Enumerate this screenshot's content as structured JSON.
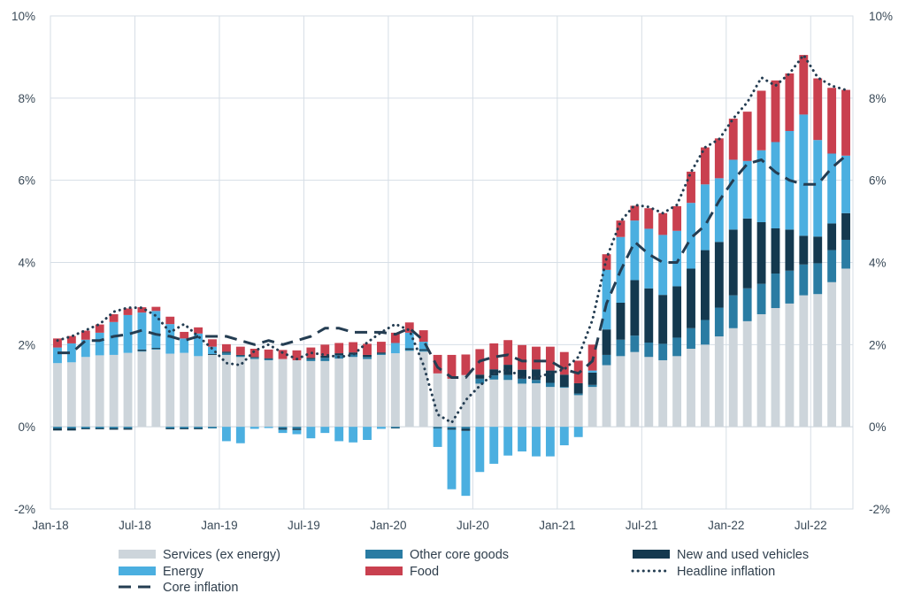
{
  "chart_data": {
    "type": "bar",
    "stacked": true,
    "x": [
      "Jan-18",
      "Feb-18",
      "Mar-18",
      "Apr-18",
      "May-18",
      "Jun-18",
      "Jul-18",
      "Aug-18",
      "Sep-18",
      "Oct-18",
      "Nov-18",
      "Dec-18",
      "Jan-19",
      "Feb-19",
      "Mar-19",
      "Apr-19",
      "May-19",
      "Jun-19",
      "Jul-19",
      "Aug-19",
      "Sep-19",
      "Oct-19",
      "Nov-19",
      "Dec-19",
      "Jan-20",
      "Feb-20",
      "Mar-20",
      "Apr-20",
      "May-20",
      "Jun-20",
      "Jul-20",
      "Aug-20",
      "Sep-20",
      "Oct-20",
      "Nov-20",
      "Dec-20",
      "Jan-21",
      "Feb-21",
      "Mar-21",
      "Apr-21",
      "May-21",
      "Jun-21",
      "Jul-21",
      "Aug-21",
      "Sep-21",
      "Oct-21",
      "Nov-21",
      "Dec-21",
      "Jan-22",
      "Feb-22",
      "Mar-22",
      "Apr-22",
      "May-22",
      "Jun-22",
      "Jul-22",
      "Aug-22",
      "Sep-22"
    ],
    "x_tick_labels": [
      "Jan-18",
      "Jul-18",
      "Jan-19",
      "Jul-19",
      "Jan-20",
      "Jul-20",
      "Jan-21",
      "Jul-21",
      "Jan-22",
      "Jul-22"
    ],
    "y_tick_labels": [
      "10%",
      "8%",
      "6%",
      "4%",
      "2%",
      "0%",
      "-2%"
    ],
    "ylim": [
      -2,
      10
    ],
    "y_unit": "%",
    "grid": true,
    "legend_position": "bottom",
    "series": [
      {
        "name": "Services (ex energy)",
        "kind": "bar",
        "color": "#cdd5db",
        "values": [
          1.55,
          1.57,
          1.7,
          1.74,
          1.75,
          1.8,
          1.83,
          1.88,
          1.78,
          1.8,
          1.72,
          1.75,
          1.75,
          1.7,
          1.65,
          1.62,
          1.65,
          1.62,
          1.6,
          1.6,
          1.66,
          1.7,
          1.65,
          1.75,
          1.79,
          1.85,
          1.83,
          1.3,
          1.17,
          1.26,
          1.05,
          1.15,
          1.14,
          1.05,
          1.06,
          0.97,
          0.95,
          0.77,
          0.97,
          1.5,
          1.72,
          1.82,
          1.7,
          1.62,
          1.72,
          1.9,
          2.0,
          2.2,
          2.4,
          2.57,
          2.74,
          2.89,
          3.0,
          3.2,
          3.23,
          3.52,
          3.85
        ]
      },
      {
        "name": "Other core goods",
        "kind": "bar",
        "color": "#2a7ca3",
        "values": [
          -0.04,
          -0.04,
          -0.04,
          -0.04,
          -0.04,
          -0.04,
          0.02,
          0.02,
          -0.04,
          -0.04,
          -0.04,
          -0.04,
          0.05,
          0.03,
          0.03,
          0.03,
          -0.04,
          -0.05,
          0.05,
          0.08,
          0.08,
          0.06,
          0.05,
          0.03,
          -0.03,
          0.03,
          0.03,
          -0.03,
          -0.04,
          -0.05,
          0.12,
          0.1,
          0.12,
          0.12,
          0.08,
          0.1,
          0.02,
          0.04,
          0.05,
          0.25,
          0.4,
          0.4,
          0.35,
          0.4,
          0.45,
          0.5,
          0.6,
          0.7,
          0.8,
          0.8,
          0.74,
          0.84,
          0.8,
          0.75,
          0.75,
          0.78,
          0.7
        ]
      },
      {
        "name": "New and used vehicles",
        "kind": "bar",
        "color": "#14394f",
        "values": [
          -0.05,
          -0.05,
          -0.02,
          -0.02,
          -0.03,
          -0.03,
          0.03,
          0.02,
          -0.02,
          -0.02,
          -0.02,
          0.02,
          0.03,
          0.02,
          0.02,
          0.02,
          -0.03,
          -0.03,
          0.03,
          0.05,
          0.05,
          0.05,
          0.05,
          0.03,
          -0.01,
          0.03,
          0.03,
          -0.01,
          -0.03,
          -0.05,
          0.1,
          0.15,
          0.25,
          0.22,
          0.26,
          0.3,
          0.3,
          0.25,
          0.3,
          0.62,
          0.9,
          1.35,
          1.32,
          1.19,
          1.25,
          1.45,
          1.7,
          1.6,
          1.6,
          1.7,
          1.5,
          1.1,
          1.0,
          0.7,
          0.65,
          0.65,
          0.65
        ]
      },
      {
        "name": "Energy",
        "kind": "bar",
        "color": "#4bafe0",
        "values": [
          0.38,
          0.46,
          0.42,
          0.55,
          0.8,
          0.92,
          0.9,
          0.9,
          0.72,
          0.35,
          0.55,
          0.18,
          -0.35,
          -0.4,
          -0.05,
          -0.03,
          -0.08,
          -0.1,
          -0.28,
          -0.15,
          -0.35,
          -0.38,
          -0.32,
          -0.05,
          0.25,
          0.38,
          0.18,
          -0.45,
          -1.45,
          -1.58,
          -1.1,
          -0.9,
          -0.7,
          -0.6,
          -0.72,
          -0.72,
          -0.45,
          -0.25,
          0.05,
          1.45,
          1.6,
          1.45,
          1.45,
          1.46,
          1.35,
          1.6,
          1.6,
          1.55,
          1.7,
          1.4,
          1.75,
          2.1,
          2.4,
          2.95,
          2.35,
          1.7,
          1.4
        ]
      },
      {
        "name": "Food",
        "kind": "bar",
        "color": "#c9404f",
        "values": [
          0.22,
          0.18,
          0.22,
          0.2,
          0.19,
          0.16,
          0.13,
          0.1,
          0.18,
          0.16,
          0.15,
          0.18,
          0.18,
          0.2,
          0.2,
          0.21,
          0.22,
          0.24,
          0.25,
          0.27,
          0.25,
          0.25,
          0.27,
          0.26,
          0.25,
          0.25,
          0.28,
          0.45,
          0.58,
          0.5,
          0.62,
          0.63,
          0.6,
          0.6,
          0.55,
          0.58,
          0.55,
          0.55,
          0.63,
          0.38,
          0.4,
          0.36,
          0.5,
          0.53,
          0.6,
          0.76,
          0.9,
          0.97,
          1.0,
          1.2,
          1.45,
          1.5,
          1.4,
          1.45,
          1.5,
          1.6,
          1.6
        ]
      },
      {
        "name": "Headline inflation",
        "kind": "line",
        "style": "dotted",
        "color": "#243d52",
        "values": [
          2.1,
          2.2,
          2.35,
          2.5,
          2.8,
          2.9,
          2.9,
          2.7,
          2.3,
          2.5,
          2.2,
          1.9,
          1.55,
          1.5,
          1.85,
          2.0,
          1.8,
          1.65,
          1.8,
          1.75,
          1.7,
          1.75,
          2.05,
          2.3,
          2.5,
          2.35,
          1.5,
          0.3,
          0.1,
          0.65,
          1.0,
          1.3,
          1.4,
          1.2,
          1.2,
          1.3,
          1.4,
          1.7,
          2.6,
          4.1,
          5.0,
          5.4,
          5.35,
          5.2,
          5.4,
          6.2,
          6.8,
          7.0,
          7.5,
          7.9,
          8.5,
          8.3,
          8.6,
          9.05,
          8.5,
          8.3,
          8.2
        ]
      },
      {
        "name": "Core inflation",
        "kind": "line",
        "style": "dashed",
        "color": "#243d52",
        "values": [
          1.8,
          1.8,
          2.1,
          2.1,
          2.2,
          2.25,
          2.35,
          2.25,
          2.2,
          2.1,
          2.2,
          2.2,
          2.2,
          2.1,
          2.0,
          2.1,
          2.0,
          2.1,
          2.2,
          2.4,
          2.4,
          2.3,
          2.3,
          2.3,
          2.25,
          2.4,
          2.1,
          1.45,
          1.2,
          1.2,
          1.6,
          1.7,
          1.75,
          1.6,
          1.6,
          1.6,
          1.4,
          1.3,
          1.6,
          3.0,
          3.8,
          4.5,
          4.2,
          4.0,
          4.0,
          4.6,
          4.9,
          5.5,
          6.0,
          6.4,
          6.5,
          6.2,
          6.0,
          5.9,
          5.9,
          6.3,
          6.6
        ]
      }
    ]
  }
}
